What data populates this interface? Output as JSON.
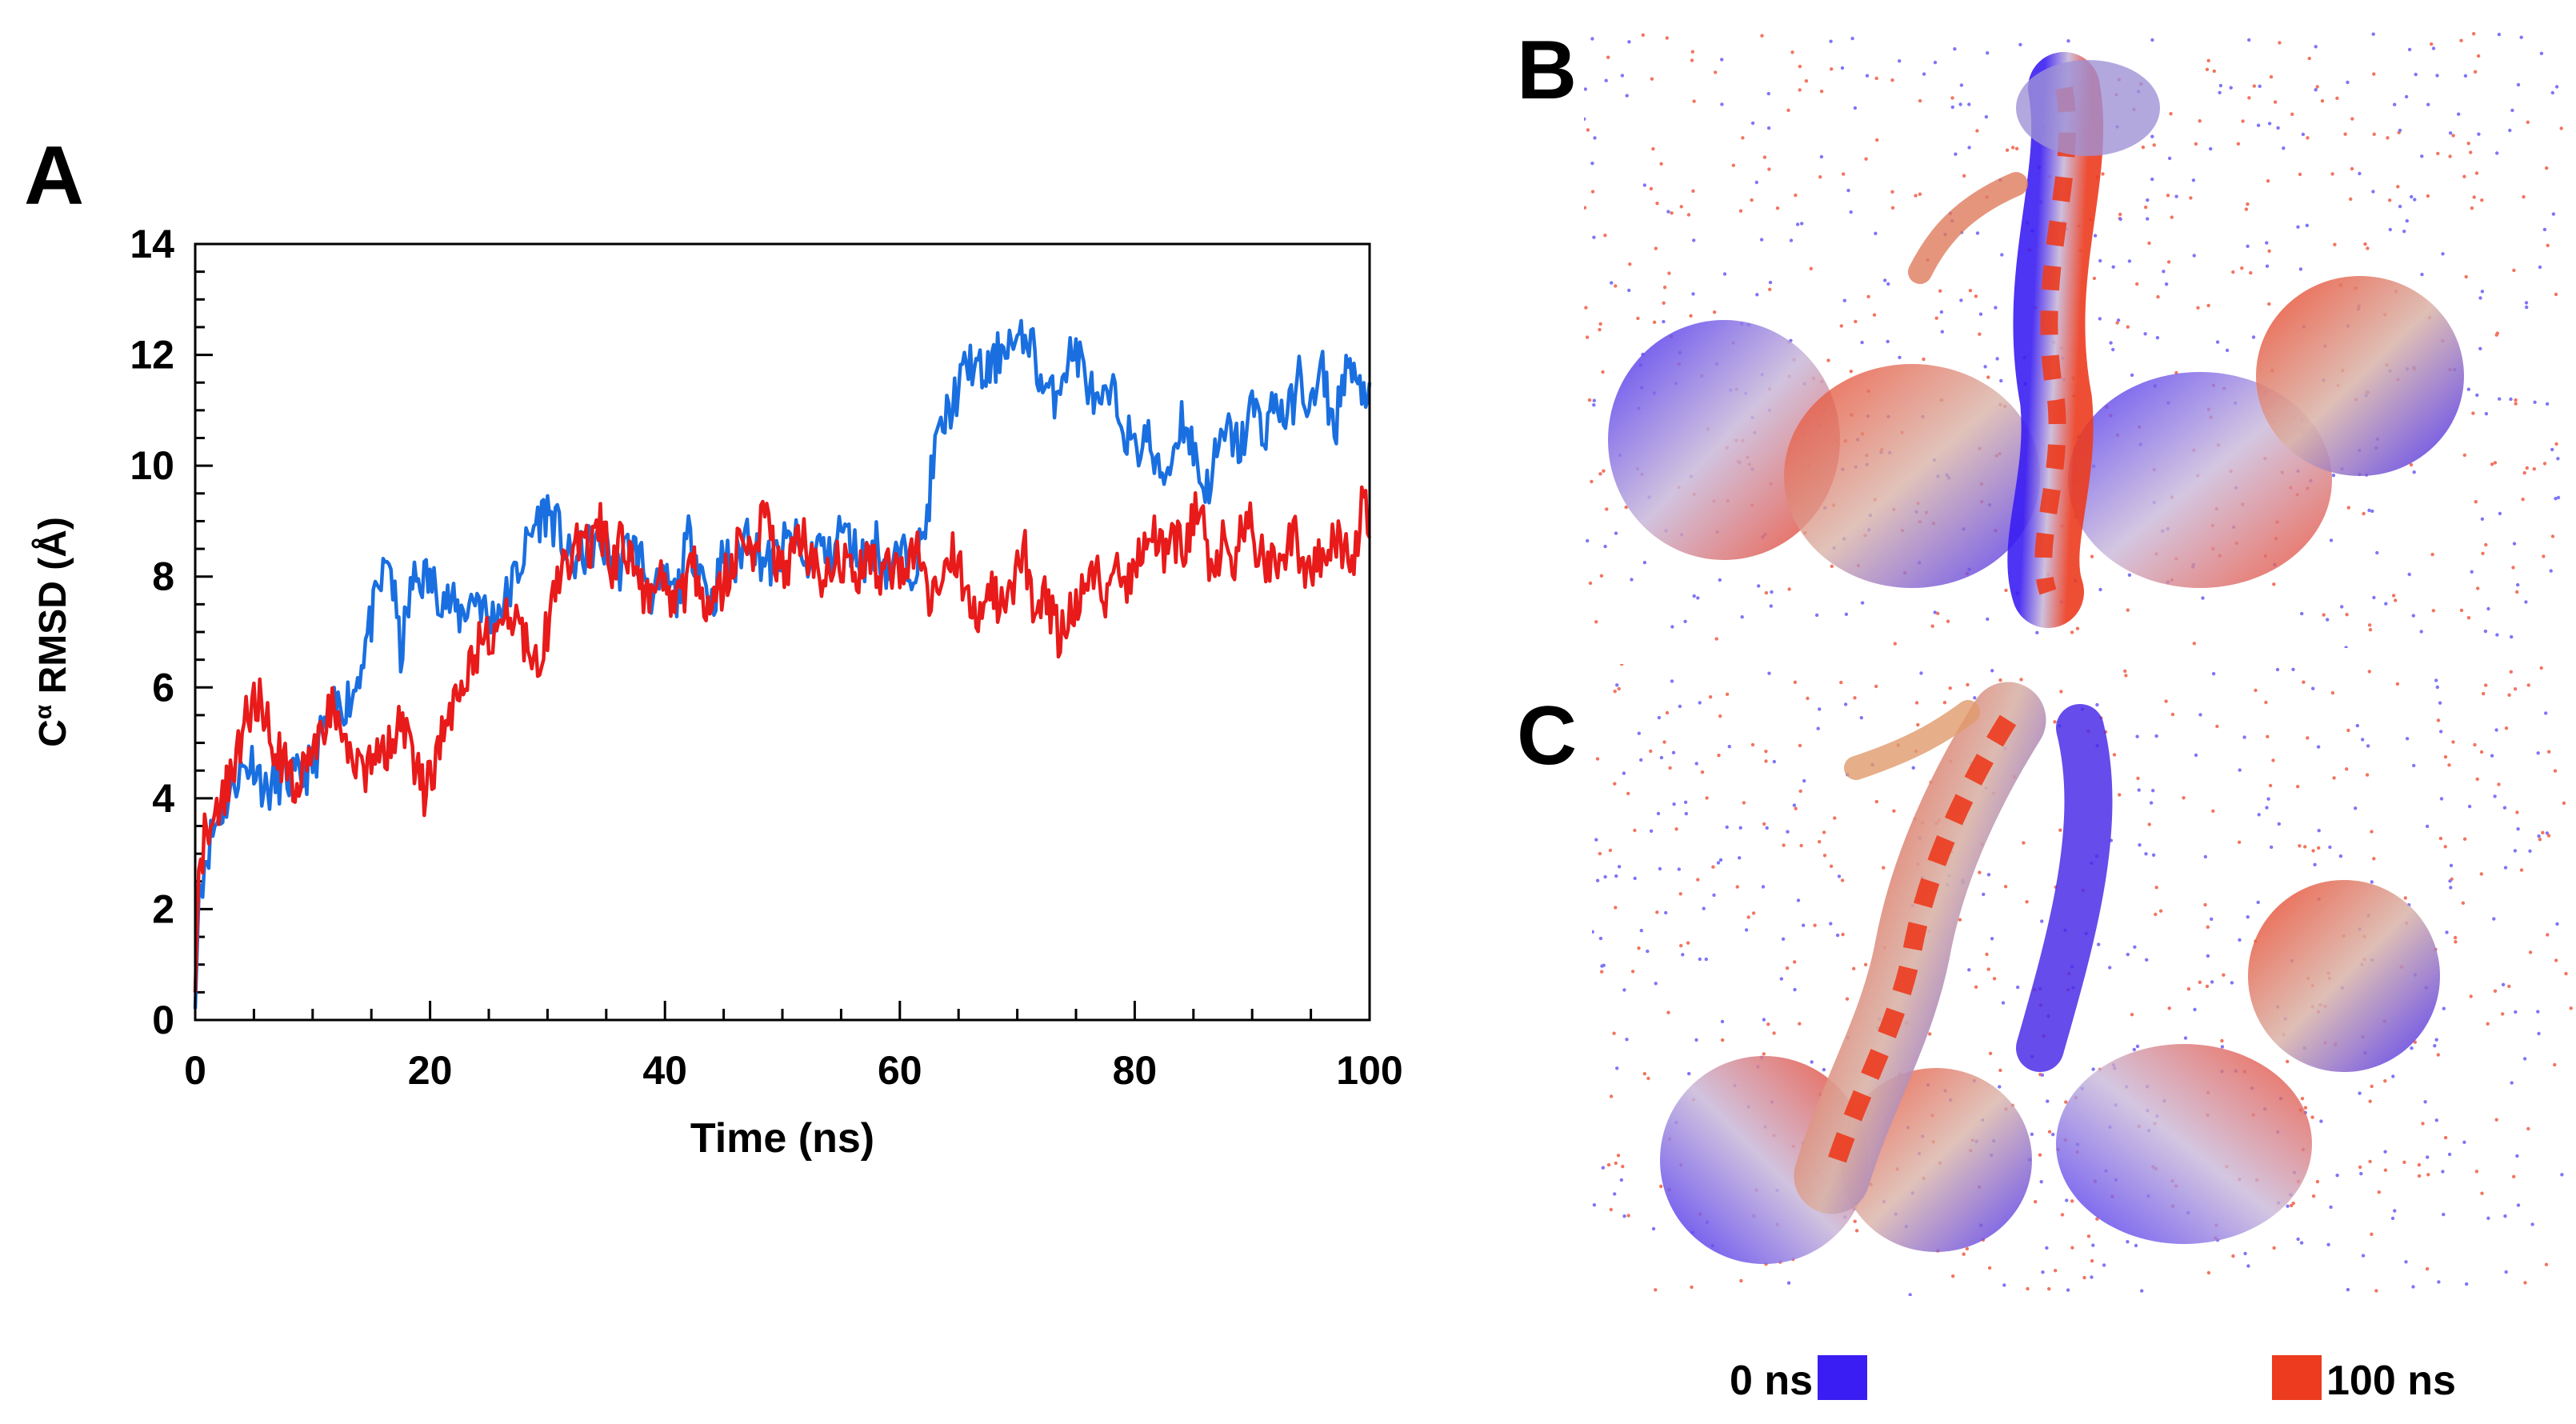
{
  "panels": {
    "a": "A",
    "b": "B",
    "c": "C"
  },
  "chart_data": {
    "type": "line",
    "title": "",
    "xlabel": "Time (ns)",
    "ylabel_main": "C",
    "ylabel_super": "α",
    "ylabel_rest": " RMSD (Å)",
    "xlim": [
      0,
      100
    ],
    "ylim": [
      0,
      14
    ],
    "xticks": [
      0,
      20,
      40,
      60,
      80,
      100
    ],
    "yticks": [
      0,
      2,
      4,
      6,
      8,
      10,
      12,
      14
    ],
    "grid": false,
    "series": [
      {
        "name": "blue",
        "color": "#1a6fe0",
        "x": [
          0,
          0.3,
          0.8,
          1.5,
          2.5,
          3.5,
          5,
          6,
          7.5,
          8.5,
          10,
          11,
          12,
          13.5,
          14.5,
          15.5,
          16.5,
          17.5,
          18.5,
          19.5,
          21,
          22.5,
          24,
          25,
          26.5,
          28,
          29,
          30,
          31,
          32,
          33,
          34,
          35,
          36,
          37,
          38,
          39,
          40,
          41,
          42,
          43,
          44,
          45,
          46,
          47,
          48,
          49,
          50,
          51,
          52,
          53,
          54,
          55,
          56,
          57,
          58,
          59,
          60,
          61,
          62,
          63,
          64,
          65,
          66,
          67,
          68,
          69,
          70,
          71,
          72,
          73,
          74,
          75,
          76,
          77,
          78,
          79,
          80,
          81,
          82,
          83,
          84,
          85,
          86,
          87,
          88,
          89,
          90,
          91,
          92,
          93,
          94,
          95,
          96,
          97,
          98,
          99,
          100
        ],
        "y": [
          0.2,
          2.2,
          2.9,
          3.4,
          3.9,
          4.4,
          4.7,
          4.1,
          4.4,
          4.3,
          4.6,
          5.3,
          5.6,
          5.9,
          6.8,
          7.6,
          8.4,
          6.6,
          7.9,
          8.0,
          7.7,
          7.3,
          7.7,
          7.2,
          7.6,
          8.4,
          9.0,
          9.2,
          8.8,
          8.2,
          8.4,
          8.6,
          8.5,
          8.1,
          8.6,
          8.3,
          7.6,
          7.9,
          7.6,
          8.7,
          8.2,
          7.5,
          8.4,
          8.1,
          8.9,
          8.4,
          8.2,
          8.5,
          8.7,
          8.1,
          8.6,
          8.3,
          8.9,
          8.5,
          8.3,
          8.6,
          8.1,
          8.4,
          8.2,
          8.6,
          10.3,
          10.9,
          11.4,
          11.9,
          11.6,
          11.8,
          12.3,
          12.1,
          12.4,
          11.5,
          11.2,
          11.8,
          12.1,
          11.5,
          10.9,
          11.3,
          10.8,
          10.2,
          10.6,
          9.8,
          10.0,
          10.9,
          10.3,
          9.5,
          10.2,
          10.6,
          10.3,
          11.1,
          10.6,
          11.2,
          10.8,
          11.6,
          11.0,
          11.7,
          10.6,
          11.9,
          11.3,
          11.5
        ]
      },
      {
        "name": "red",
        "color": "#e81a1a",
        "x": [
          0,
          0.3,
          0.8,
          1.5,
          2.5,
          3.5,
          4.5,
          5.5,
          6.5,
          7.5,
          8.5,
          9.5,
          10.5,
          11.5,
          12.5,
          13.5,
          14.5,
          15.5,
          16.5,
          17.5,
          18.5,
          19.5,
          20.5,
          21.5,
          22.5,
          23.5,
          24.5,
          25.5,
          26.5,
          27.5,
          28.5,
          29.5,
          30.5,
          31.5,
          32.5,
          33.5,
          34.5,
          35.5,
          36.5,
          37.5,
          38.5,
          39.5,
          40.5,
          41.5,
          42.5,
          43.5,
          44.5,
          45.5,
          46.5,
          47.5,
          48.5,
          49.5,
          50.5,
          51.5,
          52.5,
          53.5,
          54.5,
          55.5,
          56.5,
          57.5,
          58.5,
          59.5,
          60.5,
          61.5,
          62.5,
          63.5,
          64.5,
          65.5,
          66.5,
          67.5,
          68.5,
          69.5,
          70.5,
          71.5,
          72.5,
          73.5,
          74.5,
          75.5,
          76.5,
          77.5,
          78.5,
          79.5,
          80.5,
          81.5,
          82.5,
          83.5,
          84.5,
          85.5,
          86.5,
          87.5,
          88.5,
          89.5,
          90.5,
          91.5,
          92.5,
          93.5,
          94.5,
          95.5,
          96.5,
          97.5,
          98.5,
          99.5,
          100
        ],
        "y": [
          0.5,
          2.7,
          3.3,
          3.7,
          4.0,
          4.8,
          5.6,
          5.9,
          5.1,
          4.6,
          4.3,
          4.4,
          5.0,
          5.7,
          5.0,
          4.5,
          4.4,
          4.7,
          5.0,
          5.4,
          4.8,
          4.1,
          4.6,
          5.5,
          6.0,
          6.5,
          6.9,
          7.0,
          7.4,
          7.1,
          6.7,
          6.6,
          7.6,
          8.3,
          8.6,
          8.5,
          8.9,
          8.2,
          8.7,
          8.0,
          7.6,
          8.0,
          7.3,
          7.6,
          8.2,
          7.3,
          7.7,
          8.1,
          8.6,
          8.4,
          9.2,
          8.3,
          8.1,
          8.8,
          8.3,
          7.7,
          8.5,
          8.2,
          8.0,
          8.4,
          7.9,
          8.3,
          8.1,
          8.5,
          7.5,
          7.9,
          8.5,
          7.8,
          7.3,
          8.0,
          7.4,
          7.8,
          8.6,
          7.3,
          7.6,
          7.0,
          7.4,
          7.8,
          8.2,
          7.6,
          8.4,
          7.9,
          8.5,
          8.9,
          8.3,
          8.7,
          8.6,
          9.5,
          8.1,
          8.6,
          8.3,
          9.2,
          8.5,
          8.1,
          8.4,
          8.9,
          8.0,
          8.3,
          8.7,
          8.6,
          8.2,
          9.4,
          8.7
        ]
      }
    ]
  },
  "legend": {
    "start_label": "0 ns",
    "end_label": "100 ns",
    "start_color": "#3a1df2",
    "end_color": "#ec3b1e"
  }
}
